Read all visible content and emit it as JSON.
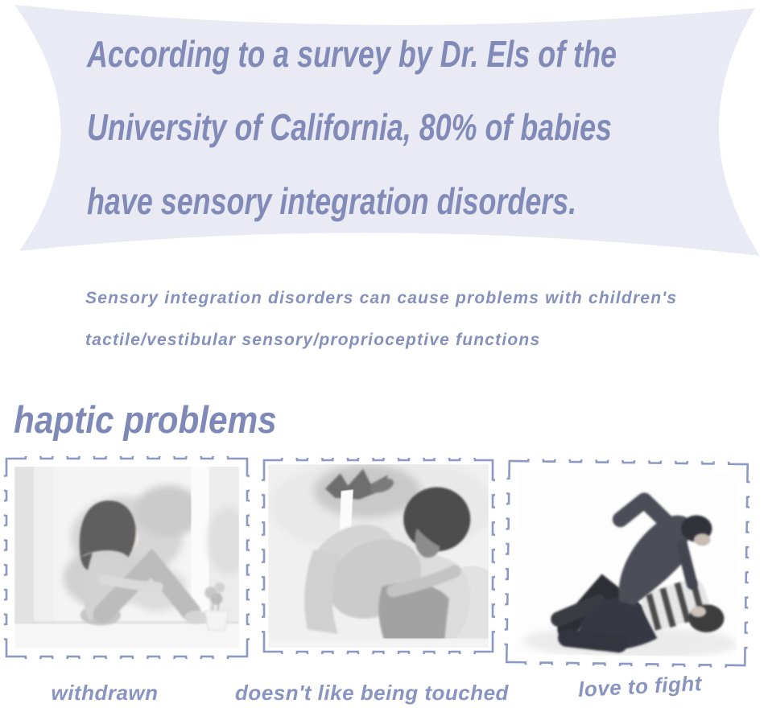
{
  "banner": {
    "lines": [
      "According to a survey by Dr. Els of the",
      "University of California, 80% of babies",
      "have sensory integration disorders."
    ],
    "bg_color": "#e9eaf4",
    "text_color": "#828ab8"
  },
  "subtitle": {
    "lines": [
      "Sensory integration disorders can cause problems with children's",
      "tactile/vestibular sensory/proprioceptive functions"
    ],
    "text_color": "#8690bb"
  },
  "section": {
    "heading": "haptic problems",
    "heading_color": "#7e89b7"
  },
  "stamps": [
    {
      "caption": "withdrawn",
      "photo_alt": "girl sitting by a window, grayscale"
    },
    {
      "caption": "doesn't like being touched",
      "photo_alt": "boy curled up hugging his knees on a sofa, grayscale"
    },
    {
      "caption": "love to fight",
      "photo_alt": "two boys wrestling on the floor, grayscale"
    }
  ],
  "colors": {
    "stamp_border": "#8d98c4",
    "caption_text": "#8a94c0",
    "page_background": "#ffffff"
  }
}
